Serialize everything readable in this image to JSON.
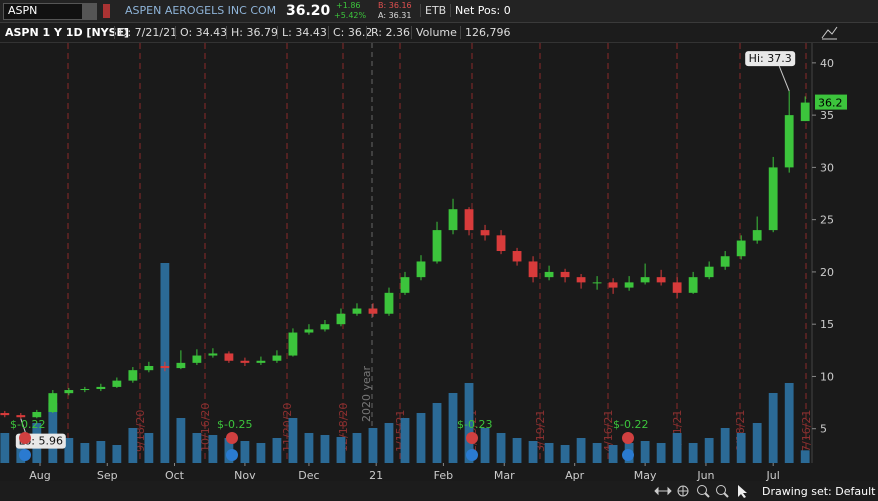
{
  "header": {
    "symbol": "ASPN",
    "company": "ASPEN AEROGELS INC COM",
    "last": "36.20",
    "change": "+1.86",
    "change_pct": "+5.42%",
    "bid": "B: 36.16",
    "ask": "A: 36.31",
    "etb": "ETB",
    "net_pos": "Net Pos: 0"
  },
  "info_bar": {
    "title": "ASPN 1 Y 1D [NYSE]",
    "date": "D: 7/21/21",
    "open": "O: 34.43",
    "high": "H: 36.79",
    "low": "L: 34.43",
    "close": "C: 36.2",
    "range": "R: 2.36",
    "volume_label": "Volume",
    "volume": "126,796"
  },
  "chart_data": {
    "type": "candlestick",
    "x": [
      0,
      5,
      10,
      15,
      20,
      25,
      30,
      35,
      40,
      45,
      50,
      55,
      60,
      65,
      70,
      75,
      80,
      85,
      90,
      95,
      100,
      105,
      110,
      115,
      120,
      125,
      130,
      135,
      140,
      145,
      150,
      155,
      160,
      165,
      170,
      175,
      180,
      185,
      190,
      195,
      200,
      205,
      210,
      215,
      220,
      225,
      230,
      235,
      240,
      245,
      250
    ],
    "open": [
      6.5,
      6.3,
      6.1,
      6.6,
      8.4,
      8.7,
      8.8,
      9.0,
      9.6,
      10.6,
      11.0,
      10.8,
      11.3,
      12.0,
      12.2,
      11.5,
      11.3,
      11.5,
      12.0,
      14.2,
      14.5,
      15.0,
      16.0,
      16.5,
      16.0,
      18.0,
      19.5,
      21.0,
      24.0,
      26.0,
      24.0,
      23.5,
      22.0,
      21.0,
      19.5,
      20.0,
      19.5,
      19.0,
      19.0,
      18.5,
      19.0,
      19.5,
      19.0,
      18.0,
      19.5,
      20.5,
      21.5,
      23.0,
      24.0,
      30.0,
      34.43
    ],
    "high": [
      6.7,
      6.5,
      6.8,
      8.7,
      8.9,
      9.0,
      9.3,
      9.9,
      10.9,
      11.4,
      11.4,
      12.5,
      12.6,
      12.7,
      12.4,
      11.8,
      11.9,
      12.5,
      14.6,
      15.0,
      15.4,
      16.5,
      17.0,
      17.0,
      18.5,
      20.0,
      21.6,
      24.8,
      27.0,
      26.2,
      24.5,
      24.0,
      22.3,
      21.5,
      20.6,
      20.3,
      19.8,
      19.6,
      19.4,
      19.6,
      20.8,
      20.2,
      19.5,
      20.0,
      21.0,
      22.0,
      23.5,
      25.3,
      31.0,
      37.3,
      36.79
    ],
    "low": [
      6.1,
      5.96,
      6.0,
      6.5,
      8.2,
      8.5,
      8.6,
      8.9,
      9.4,
      10.4,
      10.5,
      10.7,
      11.1,
      11.8,
      11.3,
      11.0,
      11.1,
      11.3,
      11.9,
      14.0,
      14.3,
      14.8,
      15.8,
      15.7,
      15.8,
      17.8,
      19.2,
      20.8,
      23.6,
      23.5,
      23.0,
      21.7,
      20.6,
      19.0,
      19.2,
      19.0,
      18.4,
      18.3,
      17.9,
      18.2,
      18.8,
      18.7,
      17.5,
      17.9,
      19.3,
      20.2,
      21.2,
      22.7,
      23.8,
      29.5,
      34.43
    ],
    "close": [
      6.3,
      6.1,
      6.6,
      8.4,
      8.7,
      8.8,
      9.0,
      9.6,
      10.6,
      11.0,
      10.8,
      11.3,
      12.0,
      12.2,
      11.5,
      11.3,
      11.5,
      12.0,
      14.2,
      14.5,
      15.0,
      16.0,
      16.5,
      16.0,
      18.0,
      19.5,
      21.0,
      24.0,
      26.0,
      24.0,
      23.5,
      22.0,
      21.0,
      19.5,
      20.0,
      19.5,
      19.0,
      19.0,
      18.5,
      19.0,
      19.5,
      19.0,
      18.0,
      19.5,
      20.5,
      21.5,
      23.0,
      24.0,
      30.0,
      35.0,
      36.2
    ],
    "volume": [
      300000,
      250000,
      400000,
      600000,
      250000,
      200000,
      220000,
      180000,
      350000,
      300000,
      2000000,
      450000,
      300000,
      280000,
      250000,
      220000,
      200000,
      250000,
      450000,
      300000,
      280000,
      260000,
      300000,
      350000,
      400000,
      450000,
      500000,
      600000,
      700000,
      800000,
      350000,
      300000,
      250000,
      220000,
      200000,
      180000,
      250000,
      200000,
      180000,
      200000,
      220000,
      200000,
      300000,
      200000,
      250000,
      350000,
      300000,
      400000,
      700000,
      800000,
      126796
    ],
    "up_color": "#3cc43c",
    "down_color": "#d83b3b",
    "volume_color": "#2b6a96",
    "ylim": [
      1.72,
      41.9
    ],
    "yticks": [
      5,
      10,
      15,
      20,
      25,
      30,
      35,
      40
    ],
    "xlim": [
      -1.5,
      251.5
    ],
    "xticks": [
      {
        "value": 11,
        "label": "Aug"
      },
      {
        "value": 32,
        "label": "Sep"
      },
      {
        "value": 53,
        "label": "Oct"
      },
      {
        "value": 75,
        "label": "Nov"
      },
      {
        "value": 95,
        "label": "Dec"
      },
      {
        "value": 116,
        "label": "21"
      },
      {
        "value": 137,
        "label": "Feb"
      },
      {
        "value": 156,
        "label": "Mar"
      },
      {
        "value": 178,
        "label": "Apr"
      },
      {
        "value": 200,
        "label": "May"
      },
      {
        "value": 219,
        "label": "Jun"
      },
      {
        "value": 240,
        "label": "Jul"
      }
    ],
    "hi_label": "Hi: 37.3",
    "lo_label": "Lo: 5.96",
    "year_label": "2020 year",
    "event_labels": [
      "$-0.22",
      "$-0.25",
      "$-0.23",
      "$-0.22"
    ],
    "date_markers": [
      "9/18/20",
      "10/16/20",
      "11/20/20",
      "12/18/20",
      "1/15/21",
      "2/19/21",
      "3/19/21",
      "4/16/21",
      "5/21/21",
      "6/18/21",
      "7/16/21"
    ]
  },
  "footer": {
    "drawing_set": "Drawing set: Default"
  }
}
